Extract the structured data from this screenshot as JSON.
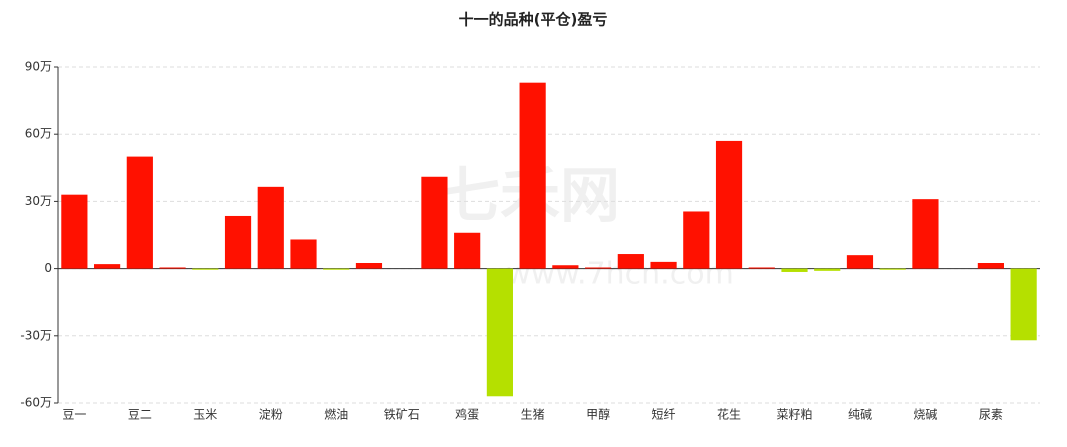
{
  "chart_data": {
    "type": "bar",
    "title": "十一的品种(平仓)盈亏",
    "watermark": "七禾网",
    "watermark_url": "www.7hcn.com",
    "categories": [
      "豆一",
      null,
      "豆二",
      null,
      "玉米",
      null,
      "淀粉",
      null,
      "燃油",
      null,
      "铁矿石",
      null,
      "鸡蛋",
      null,
      "生猪",
      null,
      "甲醇",
      null,
      "短纤",
      null,
      "花生",
      null,
      "菜籽粕",
      null,
      "纯碱",
      null,
      "烧碱",
      null,
      "尿素",
      null
    ],
    "values": [
      33,
      2,
      50,
      0.5,
      -0.5,
      23.5,
      36.5,
      13,
      -0.5,
      2.5,
      0,
      41,
      16,
      -57,
      83,
      1.5,
      0.5,
      6.5,
      3,
      25.5,
      57,
      0.5,
      -1.5,
      -1,
      6,
      -0.5,
      31,
      0,
      2.5,
      -32
    ],
    "positive_color": "#ff1100",
    "negative_color": "#b5e000",
    "ylim": [
      -60,
      90
    ],
    "yticks": [
      {
        "value": -60,
        "label": "-60万"
      },
      {
        "value": -30,
        "label": "-30万"
      },
      {
        "value": 0,
        "label": "0"
      },
      {
        "value": 30,
        "label": "30万"
      },
      {
        "value": 60,
        "label": "60万"
      },
      {
        "value": 90,
        "label": "90万"
      }
    ],
    "grid": true
  }
}
